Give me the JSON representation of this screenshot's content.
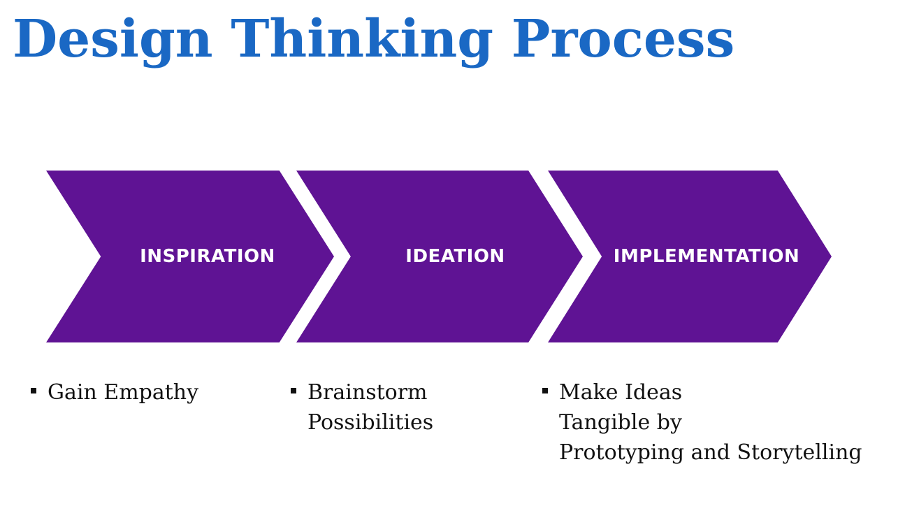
{
  "title": "Design Thinking Process",
  "colors": {
    "title": "#1a68c4",
    "chevron_fill": "#5f1394",
    "chevron_text": "#ffffff",
    "bullet_text": "#111111",
    "background": "#ffffff"
  },
  "stages": [
    {
      "label": "INSPIRATION",
      "bullet": "Gain Empathy"
    },
    {
      "label": "IDEATION",
      "bullet": "Brainstorm\nPossibilities"
    },
    {
      "label": "IMPLEMENTATION",
      "bullet": "Make Ideas\nTangible by\nPrototyping and Storytelling"
    }
  ]
}
